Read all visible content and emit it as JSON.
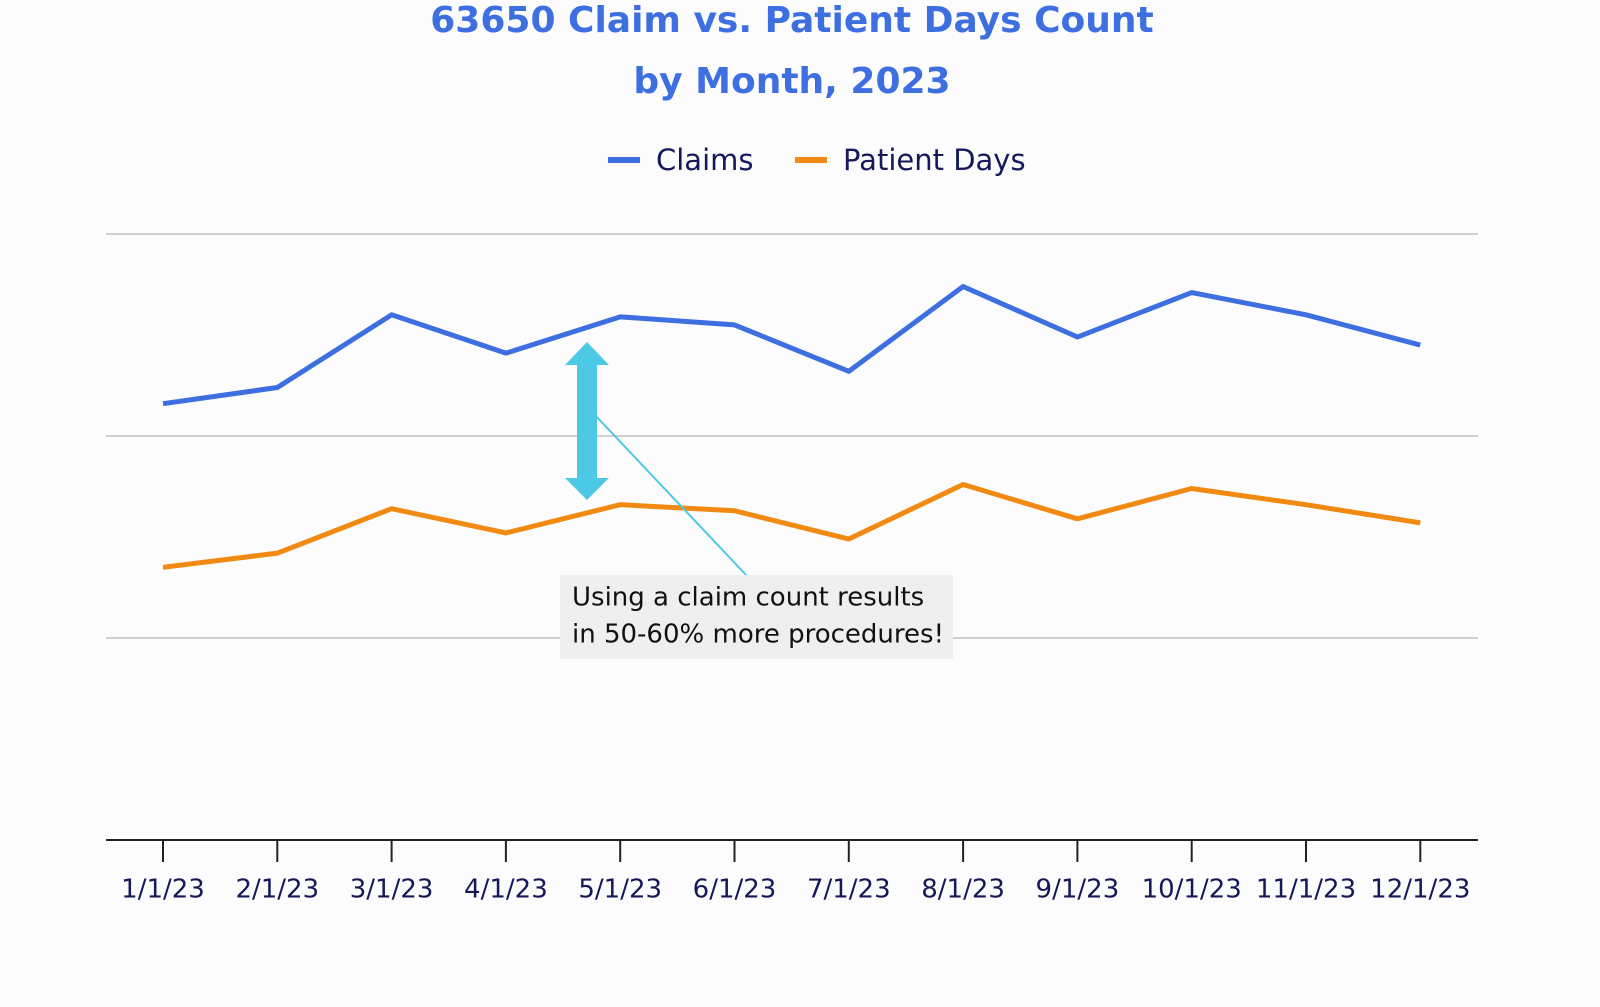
{
  "chart_data": {
    "type": "line",
    "title": [
      "63650 Claim vs. Patient Days Count",
      "by Month, 2023"
    ],
    "categories": [
      "1/1/23",
      "2/1/23",
      "3/1/23",
      "4/1/23",
      "5/1/23",
      "6/1/23",
      "7/1/23",
      "8/1/23",
      "9/1/23",
      "10/1/23",
      "11/1/23",
      "12/1/23"
    ],
    "series": [
      {
        "name": "Claims",
        "color": "#3d6fe0",
        "values": [
          2.16,
          2.24,
          2.6,
          2.41,
          2.59,
          2.55,
          2.32,
          2.74,
          2.49,
          2.71,
          2.6,
          2.45
        ]
      },
      {
        "name": "Patient Days",
        "color": "#f08a12",
        "values": [
          1.35,
          1.42,
          1.64,
          1.52,
          1.66,
          1.63,
          1.49,
          1.76,
          1.59,
          1.74,
          1.66,
          1.57
        ]
      }
    ],
    "ylim": [
      0,
      3
    ],
    "grid_lines": [
      1,
      2,
      3
    ],
    "annotation": [
      "Using a claim count results",
      "in 50-60% more procedures!"
    ]
  }
}
